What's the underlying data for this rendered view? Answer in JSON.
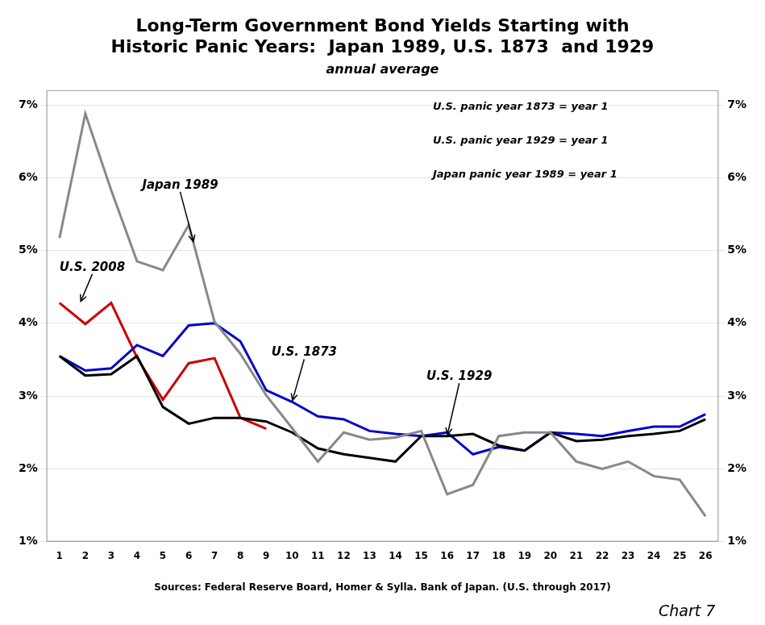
{
  "chart_data": {
    "type": "line",
    "title": [
      "Long-Term Government Bond Yields Starting with",
      "Historic Panic Years:  Japan 1989, U.S. 1873  and 1929"
    ],
    "subtitle": "annual average",
    "source": "Sources: Federal Reserve Board, Homer & Sylla. Bank of Japan. (U.S. through 2017)",
    "chart_label": "Chart 7",
    "notes": [
      "U.S. panic year 1873 = year 1",
      "U.S. panic year 1929 = year 1",
      "Japan panic year 1989 = year 1"
    ],
    "x": [
      1,
      2,
      3,
      4,
      5,
      6,
      7,
      8,
      9,
      10,
      11,
      12,
      13,
      14,
      15,
      16,
      17,
      18,
      19,
      20,
      21,
      22,
      23,
      24,
      25,
      26
    ],
    "series": [
      {
        "name": "Japan 1989",
        "color": "#888888",
        "values": [
          5.17,
          6.88,
          5.83,
          4.85,
          4.73,
          5.35,
          4.02,
          3.58,
          3.01,
          2.56,
          2.1,
          2.5,
          2.4,
          2.43,
          2.52,
          1.65,
          1.78,
          2.45,
          2.5,
          2.5,
          2.1,
          2.0,
          2.1,
          1.9,
          1.85,
          1.35
        ]
      },
      {
        "name": "U.S. 1929",
        "color": "#000000",
        "values": [
          3.55,
          3.28,
          3.3,
          3.55,
          2.85,
          2.62,
          2.7,
          2.7,
          2.65,
          2.5,
          2.28,
          2.2,
          2.15,
          2.1,
          2.45,
          2.45,
          2.48,
          2.32,
          2.25,
          2.5,
          2.38,
          2.4,
          2.45,
          2.48,
          2.52,
          2.68
        ]
      },
      {
        "name": "U.S. 1873",
        "color": "#0000cc",
        "values": [
          3.55,
          3.35,
          3.38,
          3.7,
          3.55,
          3.97,
          4.0,
          3.75,
          3.08,
          2.92,
          2.72,
          2.68,
          2.52,
          2.48,
          2.45,
          2.5,
          2.2,
          2.3,
          2.25,
          2.5,
          2.48,
          2.45,
          2.52,
          2.58,
          2.58,
          2.75
        ]
      },
      {
        "name": "U.S. 2008",
        "color": "#cc0000",
        "x": [
          1,
          2,
          3,
          4,
          5,
          6,
          7,
          8,
          9
        ],
        "values": [
          4.28,
          3.99,
          4.28,
          3.53,
          2.95,
          3.45,
          3.52,
          2.7,
          2.55
        ]
      }
    ],
    "annotations": [
      {
        "text": "Japan 1989",
        "x": 6.2,
        "y": 5.1,
        "text_x": 4.2,
        "text_y": 5.85
      },
      {
        "text": "U.S. 2008",
        "x": 1.8,
        "y": 4.28,
        "text_x": 1.0,
        "text_y": 4.72
      },
      {
        "text": "U.S. 1873",
        "x": 10.0,
        "y": 2.92,
        "text_x": 9.2,
        "text_y": 3.55
      },
      {
        "text": "U.S. 1929",
        "x": 16.0,
        "y": 2.45,
        "text_x": 15.2,
        "text_y": 3.22
      }
    ],
    "xlim": [
      0.5,
      26.5
    ],
    "xticks": [
      1,
      2,
      3,
      4,
      5,
      6,
      7,
      8,
      9,
      10,
      11,
      12,
      13,
      14,
      15,
      16,
      17,
      18,
      19,
      20,
      21,
      22,
      23,
      24,
      25,
      26
    ],
    "ylim": [
      1.0,
      7.2
    ],
    "yticks": [
      {
        "value": 1,
        "label": "1%"
      },
      {
        "value": 2,
        "label": "2%"
      },
      {
        "value": 3,
        "label": "3%"
      },
      {
        "value": 4,
        "label": "4%"
      },
      {
        "value": 5,
        "label": "5%"
      },
      {
        "value": 6,
        "label": "6%"
      },
      {
        "value": 7,
        "label": "7%"
      }
    ],
    "y2lim": [
      1.0,
      7.2
    ],
    "y2ticks": [
      {
        "value": 1,
        "label": "1%"
      },
      {
        "value": 2,
        "label": "2%"
      },
      {
        "value": 3,
        "label": "3%"
      },
      {
        "value": 4,
        "label": "4%"
      },
      {
        "value": 5,
        "label": "5%"
      },
      {
        "value": 6,
        "label": "6%"
      },
      {
        "value": 7,
        "label": "7%"
      }
    ],
    "grid": "y"
  }
}
